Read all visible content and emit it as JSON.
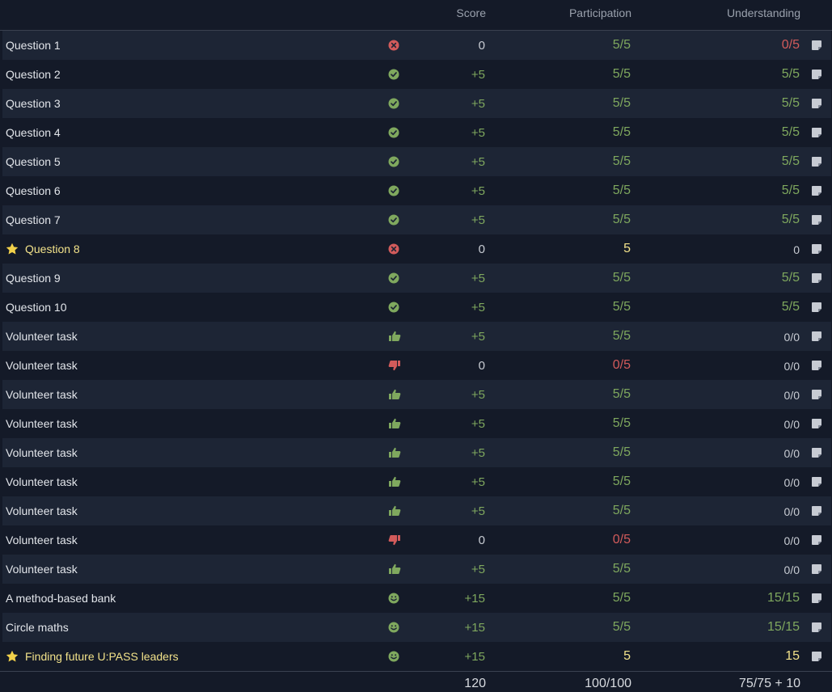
{
  "header": {
    "score": "Score",
    "participation": "Participation",
    "understanding": "Understanding"
  },
  "colors": {
    "green": "#7fa85e",
    "red": "#d25b5b",
    "yellow": "#f2e28a",
    "background": "#141a28"
  },
  "rows": [
    {
      "label": "Question 1",
      "status": "cross",
      "score": "0",
      "score_tone": "grey",
      "participation": "5/5",
      "part_tone": "green",
      "understanding": "0/5",
      "und_tone": "red"
    },
    {
      "label": "Question 2",
      "status": "check",
      "score": "+5",
      "score_tone": "green",
      "participation": "5/5",
      "part_tone": "green",
      "understanding": "5/5",
      "und_tone": "green"
    },
    {
      "label": "Question 3",
      "status": "check",
      "score": "+5",
      "score_tone": "green",
      "participation": "5/5",
      "part_tone": "green",
      "understanding": "5/5",
      "und_tone": "green"
    },
    {
      "label": "Question 4",
      "status": "check",
      "score": "+5",
      "score_tone": "green",
      "participation": "5/5",
      "part_tone": "green",
      "understanding": "5/5",
      "und_tone": "green"
    },
    {
      "label": "Question 5",
      "status": "check",
      "score": "+5",
      "score_tone": "green",
      "participation": "5/5",
      "part_tone": "green",
      "understanding": "5/5",
      "und_tone": "green"
    },
    {
      "label": "Question 6",
      "status": "check",
      "score": "+5",
      "score_tone": "green",
      "participation": "5/5",
      "part_tone": "green",
      "understanding": "5/5",
      "und_tone": "green"
    },
    {
      "label": "Question 7",
      "status": "check",
      "score": "+5",
      "score_tone": "green",
      "participation": "5/5",
      "part_tone": "green",
      "understanding": "5/5",
      "und_tone": "green"
    },
    {
      "label": "Question 8",
      "star": true,
      "status": "cross",
      "score": "0",
      "score_tone": "grey",
      "participation": "5",
      "part_tone": "yellow",
      "understanding": "0",
      "und_tone": "grey-small"
    },
    {
      "label": "Question 9",
      "status": "check",
      "score": "+5",
      "score_tone": "green",
      "participation": "5/5",
      "part_tone": "green",
      "understanding": "5/5",
      "und_tone": "green"
    },
    {
      "label": "Question 10",
      "status": "check",
      "score": "+5",
      "score_tone": "green",
      "participation": "5/5",
      "part_tone": "green",
      "understanding": "5/5",
      "und_tone": "green"
    },
    {
      "label": "Volunteer task",
      "status": "thumb-up",
      "score": "+5",
      "score_tone": "green",
      "participation": "5/5",
      "part_tone": "green",
      "understanding": "0/0",
      "und_tone": "grey-small"
    },
    {
      "label": "Volunteer task",
      "status": "thumb-down",
      "score": "0",
      "score_tone": "grey",
      "participation": "0/5",
      "part_tone": "red",
      "understanding": "0/0",
      "und_tone": "grey-small"
    },
    {
      "label": "Volunteer task",
      "status": "thumb-up",
      "score": "+5",
      "score_tone": "green",
      "participation": "5/5",
      "part_tone": "green",
      "understanding": "0/0",
      "und_tone": "grey-small"
    },
    {
      "label": "Volunteer task",
      "status": "thumb-up",
      "score": "+5",
      "score_tone": "green",
      "participation": "5/5",
      "part_tone": "green",
      "understanding": "0/0",
      "und_tone": "grey-small"
    },
    {
      "label": "Volunteer task",
      "status": "thumb-up",
      "score": "+5",
      "score_tone": "green",
      "participation": "5/5",
      "part_tone": "green",
      "understanding": "0/0",
      "und_tone": "grey-small"
    },
    {
      "label": "Volunteer task",
      "status": "thumb-up",
      "score": "+5",
      "score_tone": "green",
      "participation": "5/5",
      "part_tone": "green",
      "understanding": "0/0",
      "und_tone": "grey-small"
    },
    {
      "label": "Volunteer task",
      "status": "thumb-up",
      "score": "+5",
      "score_tone": "green",
      "participation": "5/5",
      "part_tone": "green",
      "understanding": "0/0",
      "und_tone": "grey-small"
    },
    {
      "label": "Volunteer task",
      "status": "thumb-down",
      "score": "0",
      "score_tone": "grey",
      "participation": "0/5",
      "part_tone": "red",
      "understanding": "0/0",
      "und_tone": "grey-small"
    },
    {
      "label": "Volunteer task",
      "status": "thumb-up",
      "score": "+5",
      "score_tone": "green",
      "participation": "5/5",
      "part_tone": "green",
      "understanding": "0/0",
      "und_tone": "grey-small"
    },
    {
      "label": "A method-based bank",
      "status": "smile",
      "score": "+15",
      "score_tone": "green",
      "participation": "5/5",
      "part_tone": "green",
      "understanding": "15/15",
      "und_tone": "green"
    },
    {
      "label": "Circle maths",
      "status": "smile",
      "score": "+15",
      "score_tone": "green",
      "participation": "5/5",
      "part_tone": "green",
      "understanding": "15/15",
      "und_tone": "green"
    },
    {
      "label": "Finding future U:PASS leaders",
      "star": true,
      "status": "smile",
      "score": "+15",
      "score_tone": "green",
      "participation": "5",
      "part_tone": "yellow",
      "understanding": "15",
      "und_tone": "yellow"
    }
  ],
  "footer": {
    "score_total": "120",
    "participation_total": "100/100",
    "understanding_total": "75/75 + 10"
  }
}
